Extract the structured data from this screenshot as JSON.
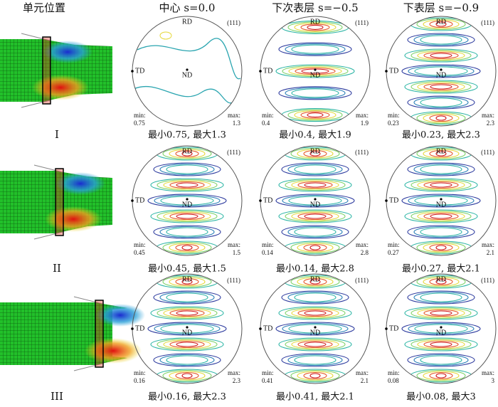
{
  "headers": [
    "单元位置",
    "中心 s=0.0",
    "下次表层 s=−0.5",
    "下表层 s=−0.9"
  ],
  "pole_figure_labels": {
    "rd": "RD",
    "td": "TD",
    "nd": "ND",
    "plane": "(111)",
    "min": "min:",
    "max": "max:"
  },
  "rows": [
    {
      "label": "I",
      "panels": [
        {
          "min": "0.75",
          "max": "1.3",
          "caption": "最小0.75, 最大1.3"
        },
        {
          "min": "0.4",
          "max": "1.9",
          "caption": "最小0.4, 最大1.9"
        },
        {
          "min": "0.23",
          "max": "2.3",
          "caption": "最小0.23, 最大2.3"
        }
      ]
    },
    {
      "label": "II",
      "panels": [
        {
          "min": "0.45",
          "max": "1.5",
          "caption": "最小0.45, 最大1.5"
        },
        {
          "min": "0.14",
          "max": "2.8",
          "caption": "最小0.14, 最大2.8"
        },
        {
          "min": "0.27",
          "max": "2.1",
          "caption": "最小0.27, 最大2.1"
        }
      ]
    },
    {
      "label": "III",
      "panels": [
        {
          "min": "0.16",
          "max": "2.3",
          "caption": "最小0.16, 最大2.3"
        },
        {
          "min": "0.41",
          "max": "2.1",
          "caption": "最小0.41, 最大2.1"
        },
        {
          "min": "0.08",
          "max": "3",
          "caption": "最小0.08, 最大3"
        }
      ]
    }
  ]
}
